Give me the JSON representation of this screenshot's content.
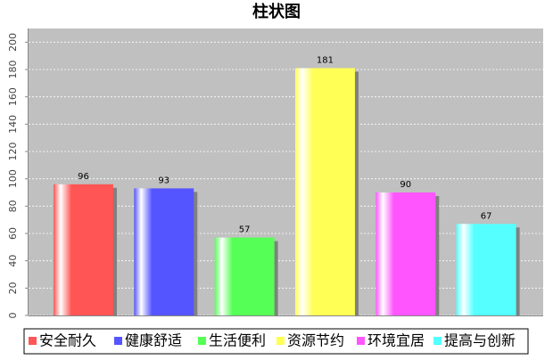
{
  "chart_data": {
    "type": "bar",
    "title": "柱状图",
    "categories": [
      "安全耐久",
      "健康舒适",
      "生活便利",
      "资源节约",
      "环境宜居",
      "提高与创新"
    ],
    "values": [
      96,
      93,
      57,
      181,
      90,
      67
    ],
    "colors": [
      "#ff5555",
      "#5555ff",
      "#55ff55",
      "#ffff55",
      "#ff55ff",
      "#55ffff"
    ],
    "ylim": [
      0,
      210
    ],
    "yticks": [
      0,
      20,
      40,
      60,
      80,
      100,
      120,
      140,
      160,
      180,
      200
    ],
    "grid": true,
    "legend": "bottom"
  }
}
